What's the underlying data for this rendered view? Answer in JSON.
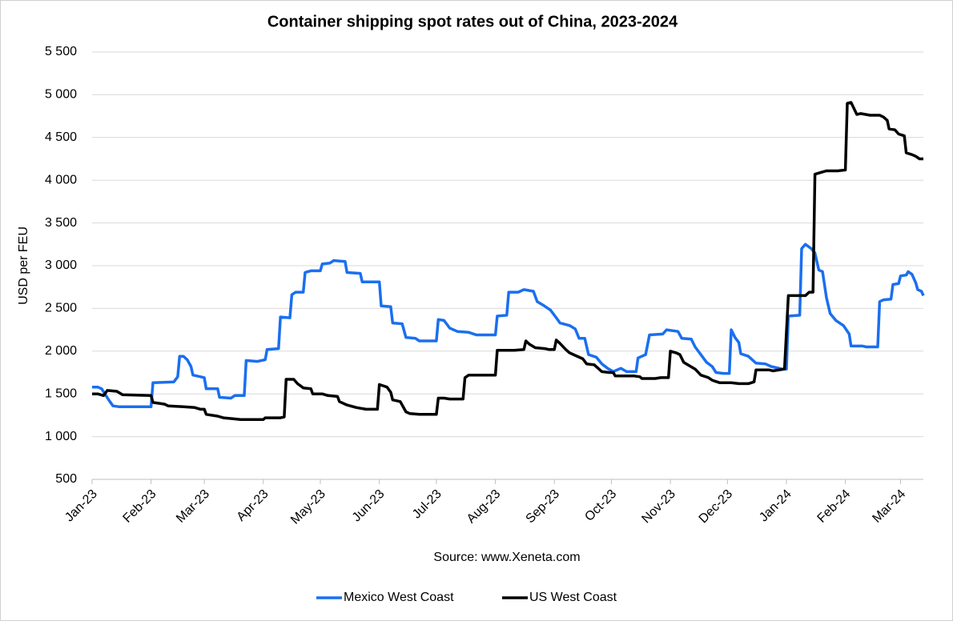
{
  "chart_data": {
    "type": "line",
    "title": "Container shipping spot rates out of China, 2023-2024",
    "y_label": "USD per FEU",
    "source": "Source: www.Xeneta.com",
    "xlim": [
      0,
      437
    ],
    "ylim": [
      500,
      5500
    ],
    "xticks": [
      {
        "value": 0,
        "label": "Jan-23"
      },
      {
        "value": 31,
        "label": "Feb-23"
      },
      {
        "value": 59,
        "label": "Mar-23"
      },
      {
        "value": 90,
        "label": "Apr-23"
      },
      {
        "value": 120,
        "label": "May-23"
      },
      {
        "value": 151,
        "label": "Jun-23"
      },
      {
        "value": 181,
        "label": "Jul-23"
      },
      {
        "value": 212,
        "label": "Aug-23"
      },
      {
        "value": 243,
        "label": "Sep-23"
      },
      {
        "value": 273,
        "label": "Oct-23"
      },
      {
        "value": 304,
        "label": "Nov-23"
      },
      {
        "value": 334,
        "label": "Dec-23"
      },
      {
        "value": 365,
        "label": "Jan-24"
      },
      {
        "value": 396,
        "label": "Feb-24"
      },
      {
        "value": 425,
        "label": "Mar-24"
      }
    ],
    "yticks": [
      {
        "value": 500,
        "label": "500"
      },
      {
        "value": 1000,
        "label": "1 000"
      },
      {
        "value": 1500,
        "label": "1 500"
      },
      {
        "value": 2000,
        "label": "2 000"
      },
      {
        "value": 2500,
        "label": "2 500"
      },
      {
        "value": 3000,
        "label": "3 000"
      },
      {
        "value": 3500,
        "label": "3 500"
      },
      {
        "value": 4000,
        "label": "4 000"
      },
      {
        "value": 4500,
        "label": "4 500"
      },
      {
        "value": 5000,
        "label": "5 000"
      },
      {
        "value": 5500,
        "label": "5 500"
      }
    ],
    "grid": true,
    "legend": "bottom",
    "series": [
      {
        "name": "Mexico West Coast",
        "color": "#1a6fef",
        "x": [
          0,
          3,
          5,
          9,
          11,
          14,
          31,
          32,
          43,
          45,
          46,
          48,
          50,
          52,
          53,
          57,
          59,
          60,
          66,
          67,
          73,
          75,
          80,
          81,
          87,
          91,
          92,
          98,
          99,
          104,
          105,
          107,
          111,
          112,
          115,
          120,
          121,
          125,
          127,
          133,
          134,
          141,
          142,
          151,
          152,
          157,
          158,
          163,
          165,
          170,
          172,
          181,
          182,
          185,
          188,
          192,
          198,
          202,
          212,
          213,
          218,
          219,
          224,
          227,
          232,
          234,
          237,
          241,
          244,
          246,
          251,
          254,
          256,
          259,
          261,
          265,
          268,
          271,
          274,
          278,
          281,
          286,
          287,
          291,
          293,
          300,
          302,
          308,
          310,
          315,
          317,
          320,
          323,
          326,
          328,
          332,
          335,
          336,
          338,
          340,
          341,
          345,
          349,
          354,
          357,
          363,
          365,
          366,
          372,
          373,
          375,
          378,
          380,
          382,
          384,
          386,
          388,
          391,
          395,
          398,
          399,
          405,
          407,
          413,
          414,
          416,
          420,
          421,
          424,
          425,
          428,
          429,
          431,
          433,
          434,
          436,
          437
        ],
        "values": [
          1580,
          1580,
          1560,
          1420,
          1360,
          1350,
          1350,
          1630,
          1640,
          1700,
          1940,
          1940,
          1900,
          1820,
          1720,
          1700,
          1690,
          1560,
          1560,
          1460,
          1450,
          1480,
          1480,
          1890,
          1880,
          1900,
          2020,
          2030,
          2400,
          2390,
          2660,
          2690,
          2690,
          2920,
          2940,
          2940,
          3020,
          3030,
          3060,
          3050,
          2920,
          2910,
          2810,
          2810,
          2530,
          2520,
          2330,
          2320,
          2160,
          2150,
          2120,
          2120,
          2370,
          2360,
          2270,
          2230,
          2220,
          2190,
          2190,
          2410,
          2420,
          2690,
          2690,
          2720,
          2700,
          2580,
          2540,
          2480,
          2390,
          2330,
          2300,
          2260,
          2150,
          2150,
          1960,
          1930,
          1850,
          1800,
          1760,
          1800,
          1760,
          1760,
          1920,
          1960,
          2190,
          2200,
          2250,
          2230,
          2150,
          2140,
          2050,
          1960,
          1870,
          1820,
          1750,
          1740,
          1740,
          2250,
          2160,
          2100,
          1970,
          1940,
          1860,
          1850,
          1820,
          1790,
          1790,
          2410,
          2420,
          3200,
          3250,
          3200,
          3150,
          2950,
          2930,
          2630,
          2440,
          2360,
          2300,
          2200,
          2060,
          2060,
          2050,
          2050,
          2580,
          2600,
          2610,
          2780,
          2790,
          2880,
          2890,
          2930,
          2900,
          2800,
          2720,
          2700,
          2650
        ]
      },
      {
        "name": "US West Coast",
        "color": "#000000",
        "x": [
          0,
          3,
          6,
          8,
          13,
          16,
          31,
          32,
          38,
          40,
          48,
          54,
          57,
          59,
          60,
          66,
          69,
          74,
          78,
          90,
          91,
          99,
          101,
          102,
          106,
          108,
          111,
          115,
          116,
          121,
          124,
          129,
          130,
          134,
          139,
          144,
          150,
          151,
          155,
          157,
          158,
          162,
          165,
          167,
          172,
          181,
          182,
          185,
          188,
          195,
          196,
          198,
          212,
          213,
          222,
          227,
          228,
          230,
          233,
          238,
          240,
          243,
          244,
          246,
          249,
          251,
          254,
          258,
          260,
          264,
          266,
          268,
          272,
          274,
          275,
          285,
          288,
          289,
          296,
          299,
          303,
          304,
          307,
          309,
          311,
          314,
          317,
          320,
          324,
          326,
          330,
          336,
          340,
          345,
          348,
          349,
          356,
          358,
          364,
          366,
          375,
          377,
          379,
          380,
          383,
          386,
          392,
          396,
          397,
          399,
          402,
          404,
          409,
          414,
          416,
          418,
          419,
          422,
          424,
          427,
          428,
          431,
          433,
          435,
          437
        ],
        "values": [
          1500,
          1500,
          1480,
          1540,
          1530,
          1490,
          1480,
          1400,
          1380,
          1360,
          1350,
          1340,
          1320,
          1320,
          1260,
          1240,
          1220,
          1210,
          1200,
          1200,
          1220,
          1220,
          1230,
          1670,
          1670,
          1620,
          1570,
          1560,
          1500,
          1500,
          1480,
          1470,
          1410,
          1370,
          1340,
          1320,
          1320,
          1610,
          1580,
          1520,
          1430,
          1410,
          1290,
          1270,
          1260,
          1260,
          1450,
          1450,
          1440,
          1440,
          1690,
          1720,
          1720,
          2010,
          2010,
          2020,
          2120,
          2080,
          2040,
          2030,
          2020,
          2020,
          2130,
          2090,
          2020,
          1980,
          1950,
          1910,
          1850,
          1840,
          1800,
          1760,
          1750,
          1750,
          1710,
          1710,
          1700,
          1680,
          1680,
          1690,
          1690,
          2000,
          1980,
          1960,
          1870,
          1830,
          1790,
          1720,
          1690,
          1660,
          1630,
          1630,
          1620,
          1620,
          1640,
          1780,
          1780,
          1770,
          1790,
          2650,
          2650,
          2690,
          2690,
          4070,
          4090,
          4110,
          4110,
          4120,
          4900,
          4910,
          4770,
          4780,
          4760,
          4760,
          4740,
          4700,
          4600,
          4590,
          4540,
          4520,
          4320,
          4300,
          4280,
          4250,
          4250
        ]
      }
    ]
  }
}
